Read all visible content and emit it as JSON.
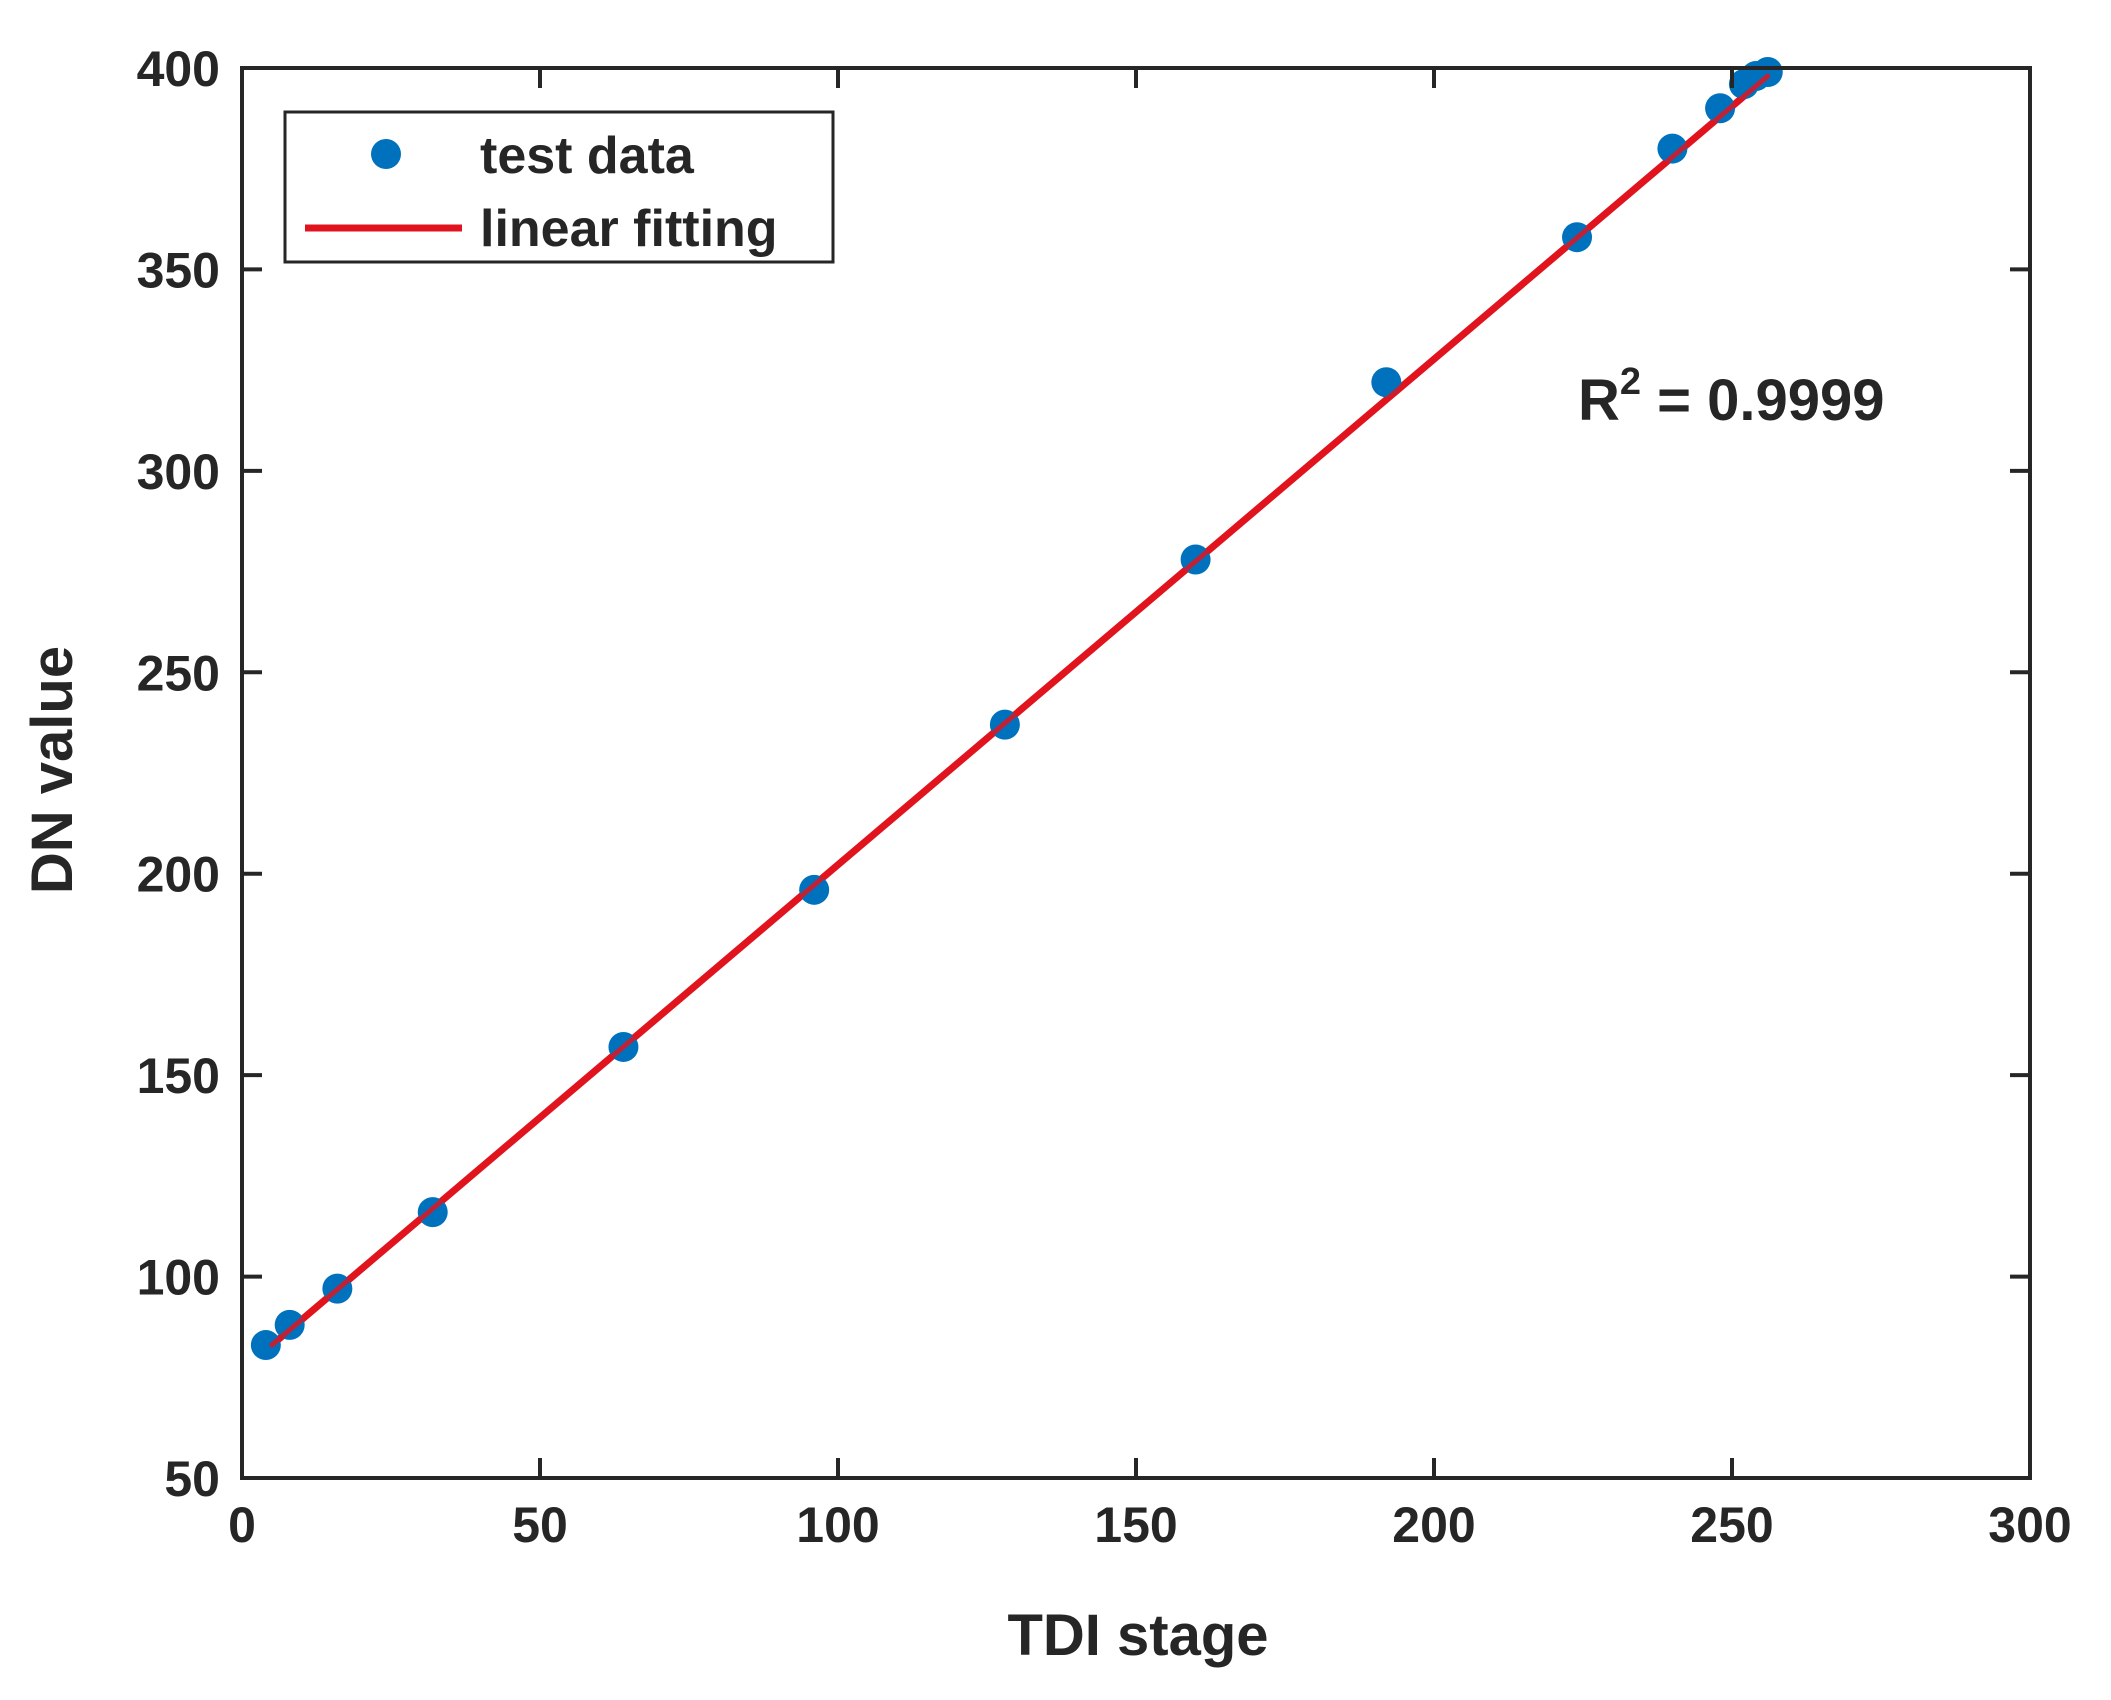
{
  "chart_data": {
    "type": "scatter",
    "title": "",
    "xlabel": "TDI stage",
    "ylabel": "DN value",
    "xlim": [
      0,
      300
    ],
    "ylim": [
      50,
      400
    ],
    "xticks": [
      0,
      50,
      100,
      150,
      200,
      250,
      300
    ],
    "yticks": [
      50,
      100,
      150,
      200,
      250,
      300,
      350,
      400
    ],
    "grid": false,
    "legend_position": "top-left",
    "series": [
      {
        "name": "test data",
        "kind": "scatter",
        "color": "#0072BD",
        "x": [
          4,
          8,
          16,
          32,
          64,
          96,
          128,
          160,
          192,
          224,
          240,
          248,
          252,
          254,
          256
        ],
        "y": [
          83,
          88,
          97,
          116,
          157,
          196,
          237,
          278,
          322,
          358,
          380,
          390,
          396,
          398,
          399
        ]
      },
      {
        "name": "linear fitting",
        "kind": "line",
        "color": "#E0141E",
        "x": [
          5,
          256
        ],
        "y": [
          83,
          398
        ]
      }
    ],
    "annotation": {
      "label": "R",
      "superscript": "2",
      "text": " = 0.9999"
    }
  }
}
